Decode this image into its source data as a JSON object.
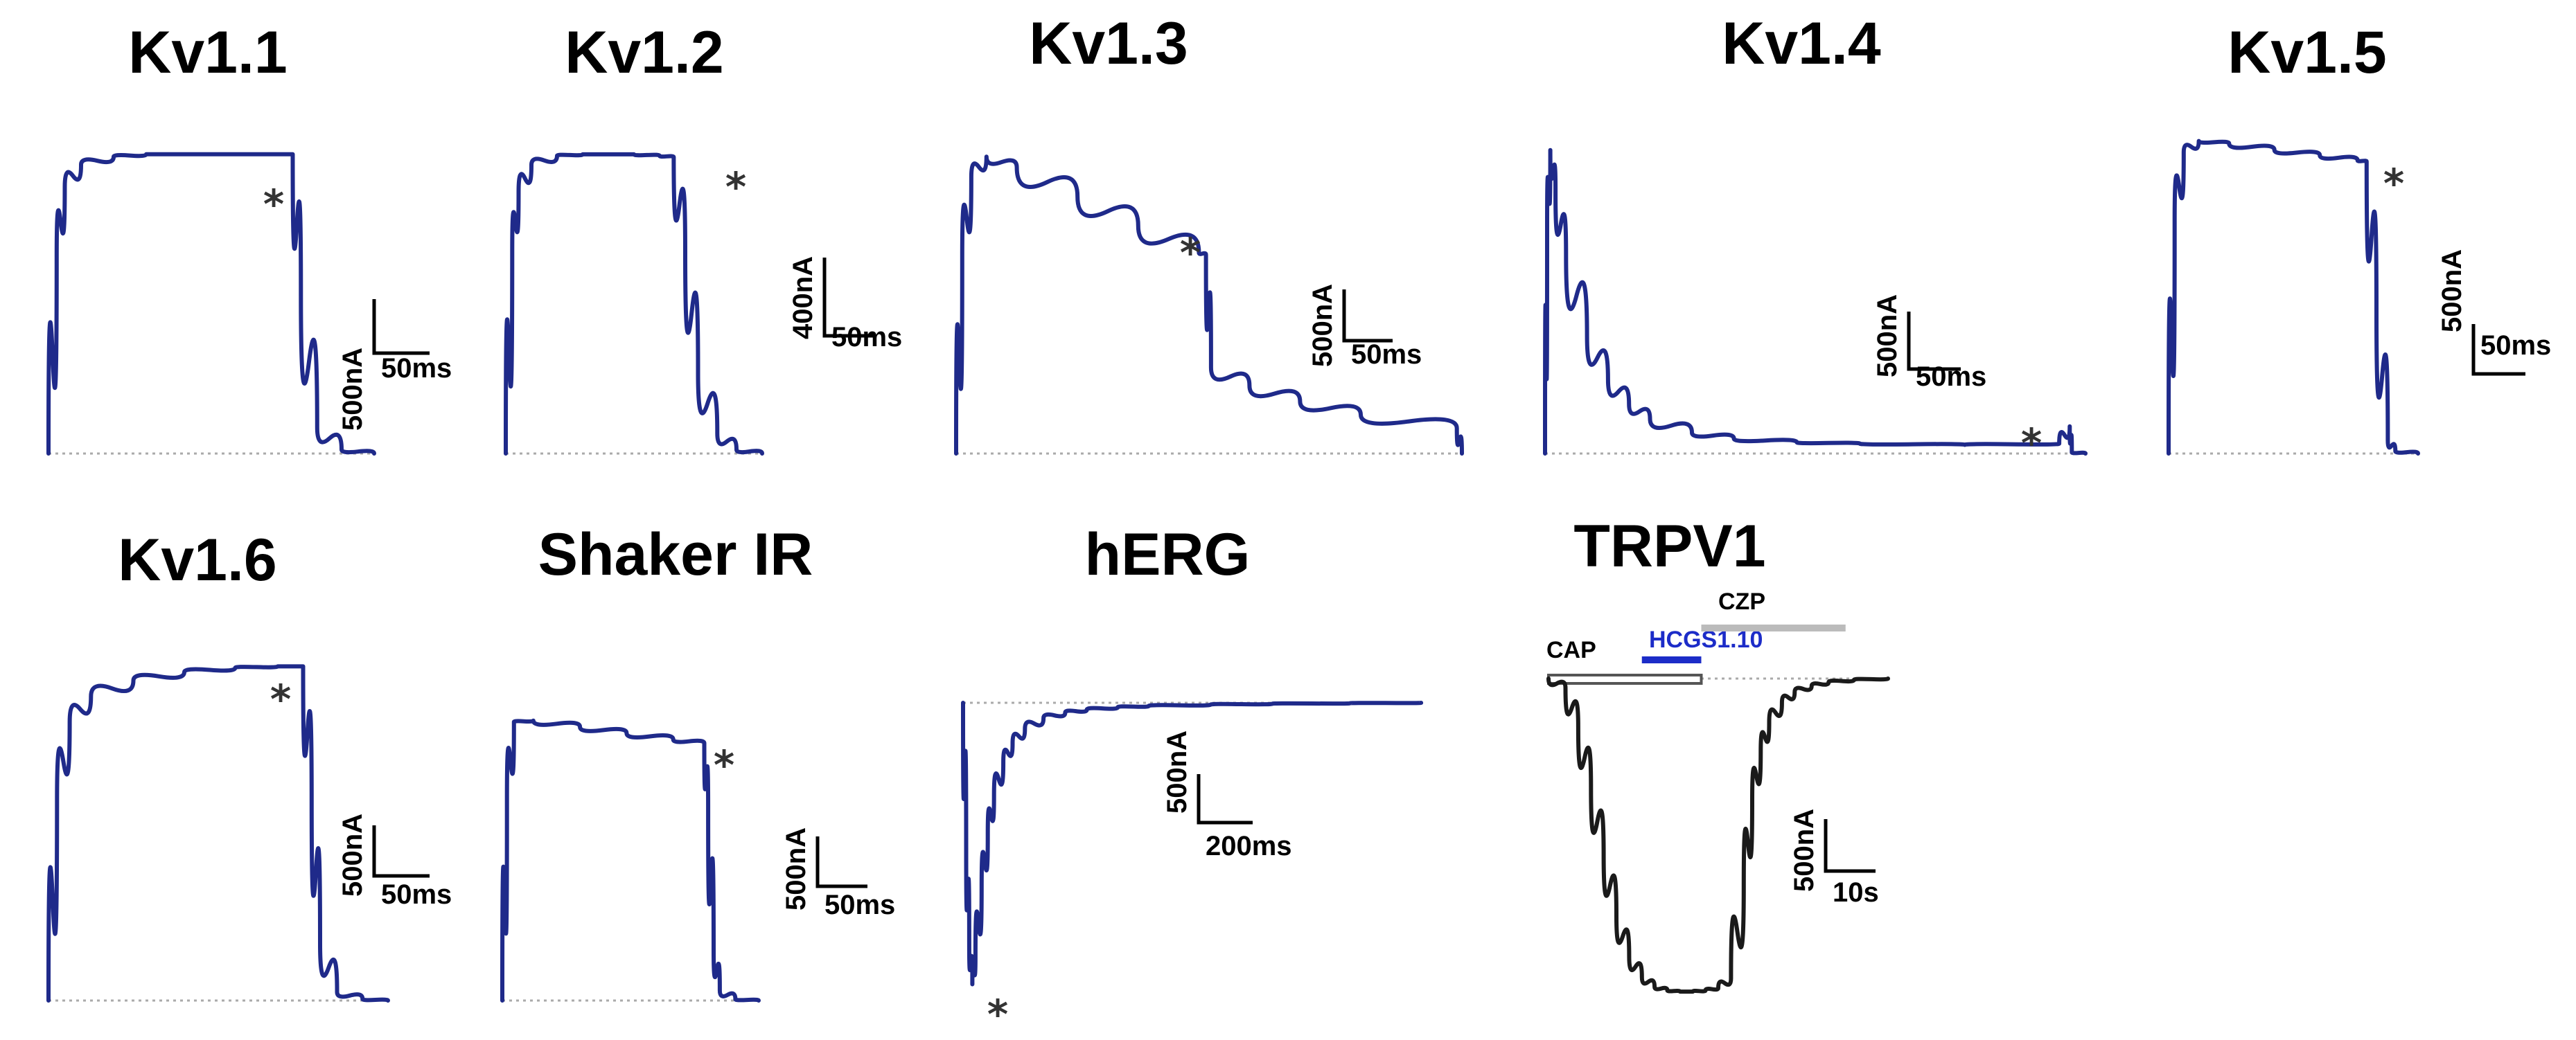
{
  "figure": {
    "trace_color": "#1f2a8a",
    "trpv1_trace_color": "#1a1a1a",
    "baseline_color": "#aaaaaa",
    "bar_colors": {
      "CAP": "#555555",
      "HCGS1.10": "#1c2cc8",
      "CZP": "#bbbbbb"
    }
  },
  "chart_data": [
    {
      "type": "line",
      "title": "Kv1.1",
      "description_shape": "rapid activation, sustained plateau, deactivation",
      "x": [
        0,
        10,
        20,
        40,
        80,
        120,
        160,
        200,
        260,
        300,
        310,
        330,
        360,
        400
      ],
      "y": [
        0,
        1500,
        2030,
        2200,
        2260,
        2280,
        2280,
        2280,
        2280,
        2280,
        1200,
        200,
        30,
        0
      ],
      "xlim": [
        0,
        400
      ],
      "ylim": [
        0,
        2400
      ],
      "asterisk_x": 280,
      "scale_bar": {
        "y_label": "500nA",
        "x_label": "50ms",
        "y_value": 500,
        "x_value": 50
      }
    },
    {
      "type": "line",
      "title": "Kv1.2",
      "x": [
        0,
        10,
        20,
        40,
        80,
        120,
        160,
        200,
        240,
        262,
        280,
        300,
        330,
        360,
        400
      ],
      "y": [
        0,
        1500,
        1950,
        2150,
        2220,
        2230,
        2230,
        2230,
        2220,
        2210,
        1500,
        600,
        150,
        30,
        0
      ],
      "xlim": [
        0,
        400
      ],
      "ylim": [
        0,
        2400
      ],
      "asterisk_x": 250,
      "scale_bar": {
        "y_label": "400nA",
        "x_label": "50ms",
        "y_value": 400,
        "x_value": 50
      }
    },
    {
      "type": "line",
      "title": "Kv1.3",
      "x": [
        0,
        6,
        15,
        30,
        60,
        120,
        180,
        240,
        247,
        252,
        290,
        340,
        400,
        495,
        500
      ],
      "y": [
        0,
        1600,
        2280,
        2450,
        2360,
        2120,
        1880,
        1660,
        1640,
        710,
        560,
        430,
        320,
        210,
        0
      ],
      "xlim": [
        0,
        500
      ],
      "ylim": [
        0,
        2600
      ],
      "asterisk_x": 242,
      "scale_bar": {
        "y_label": "500nA",
        "x_label": "50ms",
        "y_value": 500,
        "x_value": 50
      }
    },
    {
      "type": "line",
      "title": "Kv1.4",
      "x": [
        0,
        2,
        5,
        10,
        20,
        40,
        60,
        80,
        100,
        140,
        180,
        240,
        300,
        400,
        490,
        500,
        502,
        515
      ],
      "y": [
        0,
        1800,
        2450,
        2100,
        1600,
        950,
        600,
        400,
        280,
        170,
        120,
        90,
        80,
        70,
        80,
        220,
        10,
        0
      ],
      "xlim": [
        0,
        515
      ],
      "ylim": [
        0,
        2600
      ],
      "asterisk_x": 485,
      "scale_bar": {
        "y_label": "500nA",
        "x_label": "50ms",
        "y_value": 500,
        "x_value": 50
      }
    },
    {
      "type": "line",
      "title": "Kv1.5",
      "x": [
        0,
        8,
        20,
        40,
        80,
        140,
        200,
        250,
        262,
        275,
        290,
        300,
        330
      ],
      "y": [
        0,
        1800,
        2330,
        2420,
        2400,
        2350,
        2310,
        2270,
        2260,
        1100,
        100,
        20,
        0
      ],
      "xlim": [
        0,
        330
      ],
      "ylim": [
        0,
        2600
      ],
      "asterisk_x": 244,
      "scale_bar": {
        "y_label": "500nA",
        "x_label": "50ms",
        "y_value": 500,
        "x_value": 50
      }
    },
    {
      "type": "line",
      "title": "Kv1.6",
      "x": [
        0,
        10,
        25,
        50,
        100,
        160,
        220,
        270,
        300,
        310,
        320,
        340,
        370,
        400
      ],
      "y": [
        0,
        1400,
        1950,
        2130,
        2240,
        2300,
        2330,
        2340,
        2340,
        1400,
        400,
        60,
        10,
        0
      ],
      "xlim": [
        0,
        400
      ],
      "ylim": [
        0,
        2400
      ],
      "asterisk_x": 290,
      "scale_bar": {
        "y_label": "500nA",
        "x_label": "50ms",
        "y_value": 500,
        "x_value": 50
      }
    },
    {
      "type": "line",
      "title": "Shaker IR",
      "x": [
        0,
        6,
        15,
        40,
        100,
        160,
        220,
        260,
        265,
        272,
        280,
        300,
        330
      ],
      "y": [
        0,
        1600,
        2220,
        2230,
        2180,
        2130,
        2080,
        2050,
        1500,
        400,
        80,
        10,
        0
      ],
      "xlim": [
        0,
        330
      ],
      "ylim": [
        0,
        2400
      ],
      "asterisk_x": 245,
      "scale_bar": {
        "y_label": "500nA",
        "x_label": "50ms",
        "y_value": 500,
        "x_value": 50
      }
    },
    {
      "type": "line",
      "title": "hERG",
      "x": [
        0,
        10,
        20,
        30,
        40,
        60,
        80,
        100,
        130,
        160,
        200,
        260,
        330,
        400,
        500,
        600,
        800,
        1000,
        1250,
        1480
      ],
      "y": [
        0,
        -1600,
        -2650,
        -3120,
        -2820,
        -2060,
        -1450,
        -1030,
        -660,
        -450,
        -290,
        -170,
        -110,
        -75,
        -50,
        -35,
        -20,
        -10,
        -5,
        0
      ],
      "xlim": [
        0,
        1500
      ],
      "ylim": [
        -3300,
        200
      ],
      "asterisk_x": 32,
      "scale_bar": {
        "y_label": "500nA",
        "x_label": "200ms",
        "y_value": 500,
        "x_value": 200
      }
    },
    {
      "type": "line",
      "title": "TRPV1",
      "x": [
        0,
        4,
        7,
        10,
        13,
        16,
        19,
        22,
        25,
        28,
        31,
        34,
        37,
        40,
        43,
        46,
        48,
        50,
        52,
        55,
        58,
        62,
        66,
        72,
        80
      ],
      "y": [
        0,
        -80,
        -400,
        -900,
        -1450,
        -1950,
        -2280,
        -2450,
        -2530,
        -2560,
        -2570,
        -2570,
        -2560,
        -2540,
        -2460,
        -1700,
        -1000,
        -600,
        -360,
        -200,
        -110,
        -60,
        -30,
        -10,
        0
      ],
      "xlim": [
        0,
        80
      ],
      "ylim": [
        -2700,
        200
      ],
      "asterisk_x": null,
      "application_bars": [
        {
          "label": "CAP",
          "start": 0,
          "end": 36
        },
        {
          "label": "HCGS1.10",
          "start": 22,
          "end": 36
        },
        {
          "label": "CZP",
          "start": 36,
          "end": 70
        }
      ],
      "scale_bar": {
        "y_label": "500nA",
        "x_label": "10s",
        "y_value": 500,
        "x_value": 10
      }
    }
  ]
}
